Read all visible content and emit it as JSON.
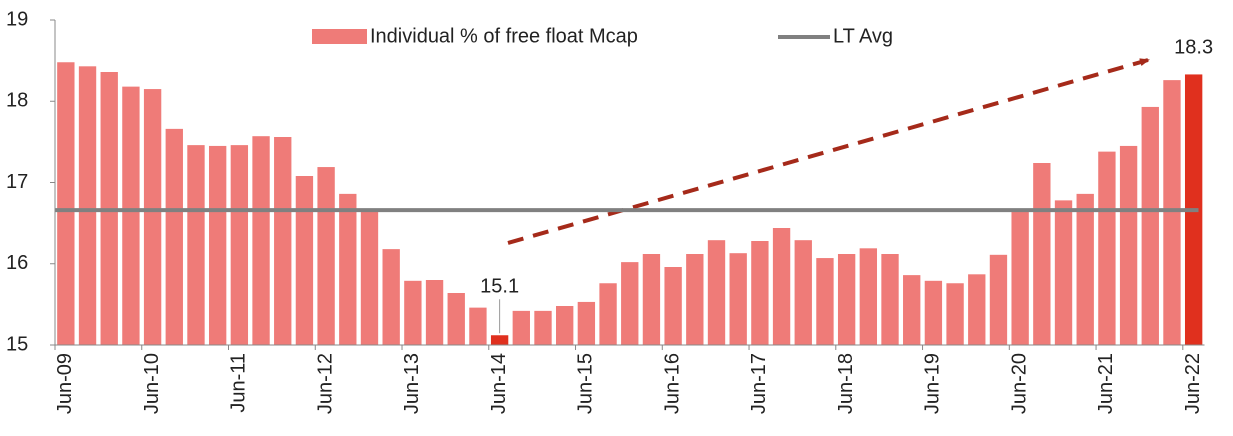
{
  "chart_data": {
    "type": "bar",
    "categories": [
      "Jun-09",
      null,
      null,
      null,
      "Jun-10",
      null,
      null,
      null,
      "Jun-11",
      null,
      null,
      null,
      "Jun-12",
      null,
      null,
      null,
      "Jun-13",
      null,
      null,
      null,
      "Jun-14",
      null,
      null,
      null,
      "Jun-15",
      null,
      null,
      null,
      "Jun-16",
      null,
      null,
      null,
      "Jun-17",
      null,
      null,
      null,
      "Jun-18",
      null,
      null,
      null,
      "Jun-19",
      null,
      null,
      null,
      "Jun-20",
      null,
      null,
      null,
      "Jun-21",
      null,
      null,
      null,
      "Jun-22"
    ],
    "series": [
      {
        "name": "Individual % of free float Mcap",
        "color": "#ef7b78",
        "values": [
          18.48,
          18.43,
          18.36,
          18.18,
          18.15,
          17.66,
          17.46,
          17.45,
          17.46,
          17.57,
          17.56,
          17.08,
          17.19,
          16.86,
          16.66,
          16.18,
          15.79,
          15.8,
          15.64,
          15.46,
          15.12,
          15.42,
          15.42,
          15.48,
          15.53,
          15.76,
          16.02,
          16.12,
          15.96,
          16.12,
          16.29,
          16.13,
          16.28,
          16.44,
          16.29,
          16.07,
          16.12,
          16.19,
          16.12,
          15.86,
          15.79,
          15.76,
          15.87,
          16.11,
          16.64,
          17.24,
          16.78,
          16.86,
          17.38,
          17.45,
          17.93,
          18.26,
          18.33
        ],
        "value_labels": [
          null,
          null,
          null,
          null,
          null,
          null,
          null,
          null,
          null,
          null,
          null,
          null,
          null,
          null,
          null,
          null,
          null,
          null,
          null,
          null,
          "15.1",
          null,
          null,
          null,
          null,
          null,
          null,
          null,
          null,
          null,
          null,
          null,
          null,
          null,
          null,
          null,
          null,
          null,
          null,
          null,
          null,
          null,
          null,
          null,
          null,
          null,
          null,
          null,
          null,
          null,
          null,
          null,
          "18.3"
        ],
        "highlight_color": "#e0301e"
      },
      {
        "name": "LT Avg",
        "color": "#808080",
        "value": 16.66
      }
    ],
    "ylim": [
      15,
      19
    ],
    "yticks": [
      15,
      16,
      17,
      18,
      19
    ]
  }
}
